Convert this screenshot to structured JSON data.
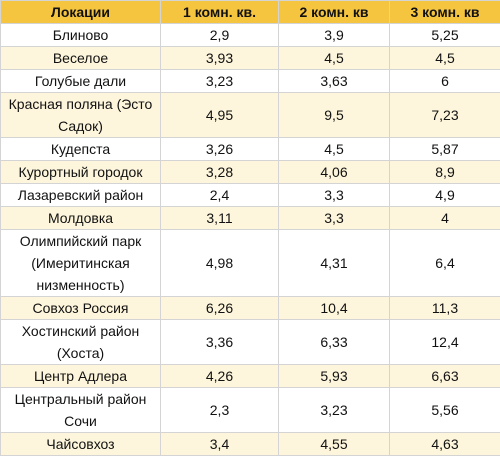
{
  "table": {
    "headers": [
      "Локации",
      "1 комн. кв.",
      "2 комн. кв",
      "3 комн. кв"
    ],
    "rows": [
      {
        "cells": [
          "Блиново",
          "2,9",
          "3,9",
          "5,25"
        ]
      },
      {
        "cells": [
          "Веселое",
          "3,93",
          "4,5",
          "4,5"
        ]
      },
      {
        "cells": [
          "Голубые дали",
          "3,23",
          "3,63",
          "6"
        ]
      },
      {
        "cells": [
          "Красная поляна (Эсто Садок)",
          "4,95",
          "9,5",
          "7,23"
        ]
      },
      {
        "cells": [
          "Кудепста",
          "3,26",
          "4,5",
          "5,87"
        ]
      },
      {
        "cells": [
          "Курортный городок",
          "3,28",
          "4,06",
          "8,9"
        ]
      },
      {
        "cells": [
          "Лазаревский район",
          "2,4",
          "3,3",
          "4,9"
        ]
      },
      {
        "cells": [
          "Молдовка",
          "3,11",
          "3,3",
          "4"
        ]
      },
      {
        "cells": [
          "Олимпийский парк (Имеритинская низменность)",
          "4,98",
          "4,31",
          "6,4"
        ]
      },
      {
        "cells": [
          "Совхоз Россия",
          "6,26",
          "10,4",
          "11,3"
        ]
      },
      {
        "cells": [
          "Хостинский район (Хоста)",
          "3,36",
          "6,33",
          "12,4"
        ]
      },
      {
        "cells": [
          "Центр Адлера",
          "4,26",
          "5,93",
          "6,63"
        ]
      },
      {
        "cells": [
          "Центральный район Сочи",
          "2,3",
          "3,23",
          "5,56"
        ]
      },
      {
        "cells": [
          "Чайсовхоз",
          "3,4",
          "4,55",
          "4,63"
        ]
      }
    ]
  }
}
